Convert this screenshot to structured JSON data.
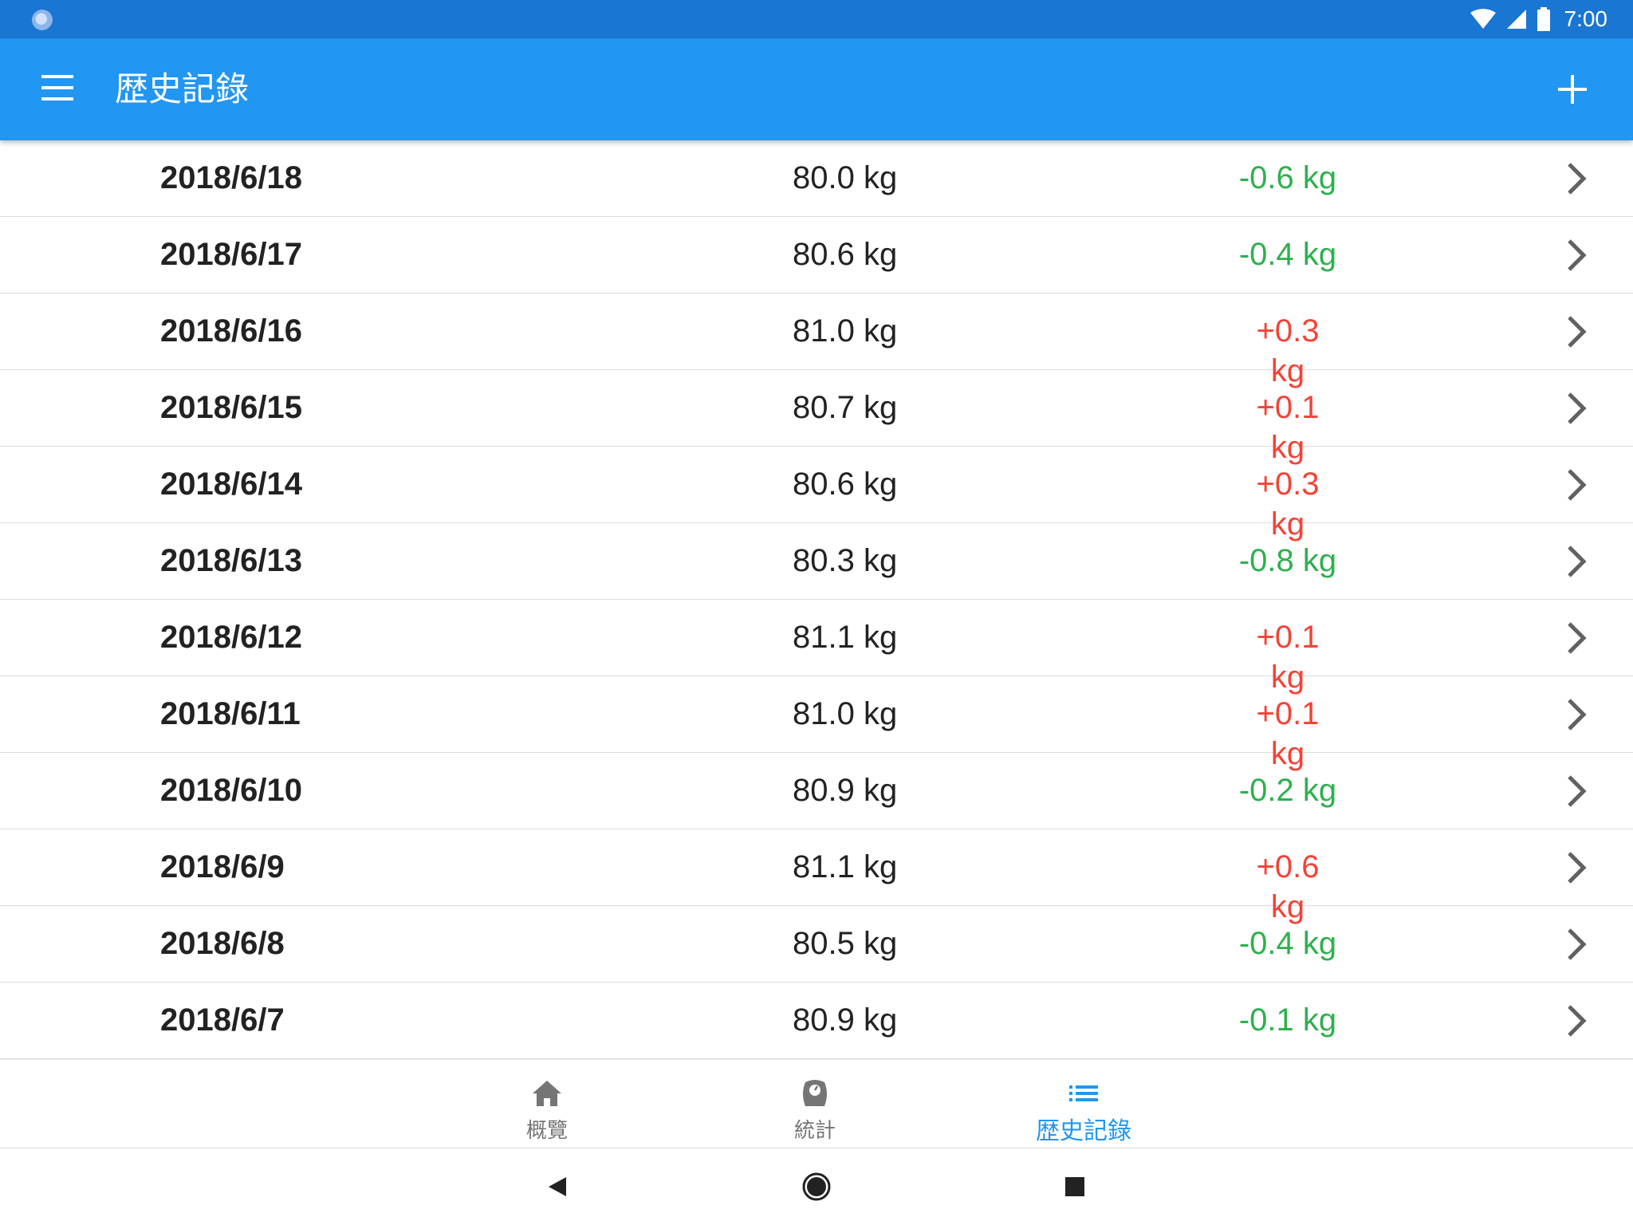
{
  "status_bar": {
    "time": "7:00"
  },
  "app_bar": {
    "title": "歴史記錄",
    "menu_icon": "menu-icon",
    "add_icon": "add-icon"
  },
  "records": [
    {
      "date": "2018/6/18",
      "weight": "80.0 kg",
      "diff": "-0.6 kg",
      "trend": "down"
    },
    {
      "date": "2018/6/17",
      "weight": "80.6 kg",
      "diff": "-0.4 kg",
      "trend": "down"
    },
    {
      "date": "2018/6/16",
      "weight": "81.0 kg",
      "diff": "+0.3 kg",
      "trend": "up"
    },
    {
      "date": "2018/6/15",
      "weight": "80.7 kg",
      "diff": "+0.1 kg",
      "trend": "up"
    },
    {
      "date": "2018/6/14",
      "weight": "80.6 kg",
      "diff": "+0.3 kg",
      "trend": "up"
    },
    {
      "date": "2018/6/13",
      "weight": "80.3 kg",
      "diff": "-0.8 kg",
      "trend": "down"
    },
    {
      "date": "2018/6/12",
      "weight": "81.1 kg",
      "diff": "+0.1 kg",
      "trend": "up"
    },
    {
      "date": "2018/6/11",
      "weight": "81.0 kg",
      "diff": "+0.1 kg",
      "trend": "up"
    },
    {
      "date": "2018/6/10",
      "weight": "80.9 kg",
      "diff": "-0.2 kg",
      "trend": "down"
    },
    {
      "date": "2018/6/9",
      "weight": "81.1 kg",
      "diff": "+0.6 kg",
      "trend": "up"
    },
    {
      "date": "2018/6/8",
      "weight": "80.5 kg",
      "diff": "-0.4 kg",
      "trend": "down"
    },
    {
      "date": "2018/6/7",
      "weight": "80.9 kg",
      "diff": "-0.1 kg",
      "trend": "down"
    }
  ],
  "bottom_nav": {
    "items": [
      {
        "label": "概覽",
        "icon": "home-icon",
        "active": false
      },
      {
        "label": "統計",
        "icon": "scale-icon",
        "active": false
      },
      {
        "label": "歴史記錄",
        "icon": "list-icon",
        "active": true
      }
    ]
  },
  "colors": {
    "status_bar": "#1976d2",
    "app_bar": "#2196f3",
    "decrease": "#2eb04e",
    "increase": "#f44336",
    "active_tab": "#2196f3"
  }
}
